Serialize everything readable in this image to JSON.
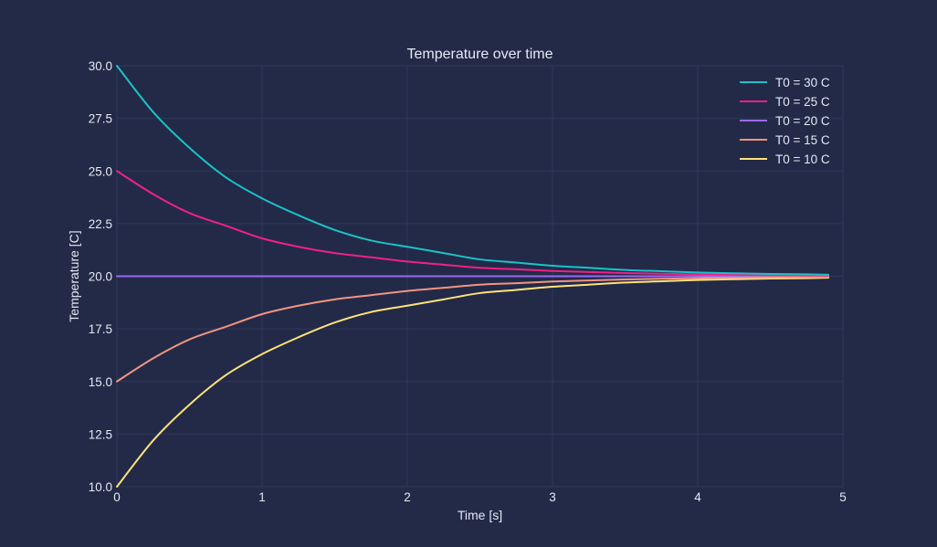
{
  "chart_data": {
    "type": "line",
    "title": "Temperature over time",
    "xlabel": "Time [s]",
    "ylabel": "Temperature [C]",
    "xlim": [
      0,
      5
    ],
    "ylim": [
      10,
      30
    ],
    "x_ticks": [
      "0",
      "1",
      "2",
      "3",
      "4",
      "5"
    ],
    "y_ticks": [
      "10.0",
      "12.5",
      "15.0",
      "17.5",
      "20.0",
      "22.5",
      "25.0",
      "27.5",
      "30.0"
    ],
    "grid": true,
    "legend_position": "top-right",
    "x": [
      0,
      0.25,
      0.5,
      0.75,
      1,
      1.25,
      1.5,
      1.75,
      2,
      2.25,
      2.5,
      2.75,
      3,
      3.25,
      3.5,
      3.75,
      4,
      4.25,
      4.5,
      4.75,
      4.9
    ],
    "series": [
      {
        "name": "T0 = 30 C",
        "color": "#19c3c8",
        "values": [
          30.0,
          27.8,
          26.1,
          24.7,
          23.7,
          22.9,
          22.2,
          21.7,
          21.4,
          21.1,
          20.8,
          20.65,
          20.5,
          20.4,
          20.3,
          20.24,
          20.18,
          20.14,
          20.11,
          20.09,
          20.07
        ]
      },
      {
        "name": "T0 = 25 C",
        "color": "#f0208a",
        "values": [
          25.0,
          23.9,
          23.0,
          22.4,
          21.8,
          21.4,
          21.1,
          20.9,
          20.7,
          20.55,
          20.4,
          20.33,
          20.25,
          20.2,
          20.15,
          20.12,
          20.09,
          20.07,
          20.05,
          20.04,
          20.03
        ]
      },
      {
        "name": "T0 = 20 C",
        "color": "#9a6bf0",
        "values": [
          20.0,
          20.0,
          20.0,
          20.0,
          20.0,
          20.0,
          20.0,
          20.0,
          20.0,
          20.0,
          20.0,
          20.0,
          20.0,
          20.0,
          20.0,
          20.0,
          20.0,
          20.0,
          20.0,
          20.0,
          20.0
        ]
      },
      {
        "name": "T0 = 15 C",
        "color": "#f39480",
        "values": [
          15.0,
          16.1,
          17.0,
          17.6,
          18.2,
          18.6,
          18.9,
          19.1,
          19.3,
          19.45,
          19.6,
          19.67,
          19.75,
          19.8,
          19.85,
          19.88,
          19.91,
          19.93,
          19.95,
          19.96,
          19.97
        ]
      },
      {
        "name": "T0 = 10 C",
        "color": "#ffe27a",
        "values": [
          10.0,
          12.2,
          13.9,
          15.3,
          16.3,
          17.1,
          17.8,
          18.3,
          18.6,
          18.9,
          19.2,
          19.35,
          19.5,
          19.6,
          19.7,
          19.76,
          19.82,
          19.86,
          19.89,
          19.91,
          19.93
        ]
      }
    ]
  },
  "colors": {
    "background": "#222a48",
    "plot_background": "#222a48",
    "grid": "#2f3858",
    "text": "#e6e9f2"
  }
}
